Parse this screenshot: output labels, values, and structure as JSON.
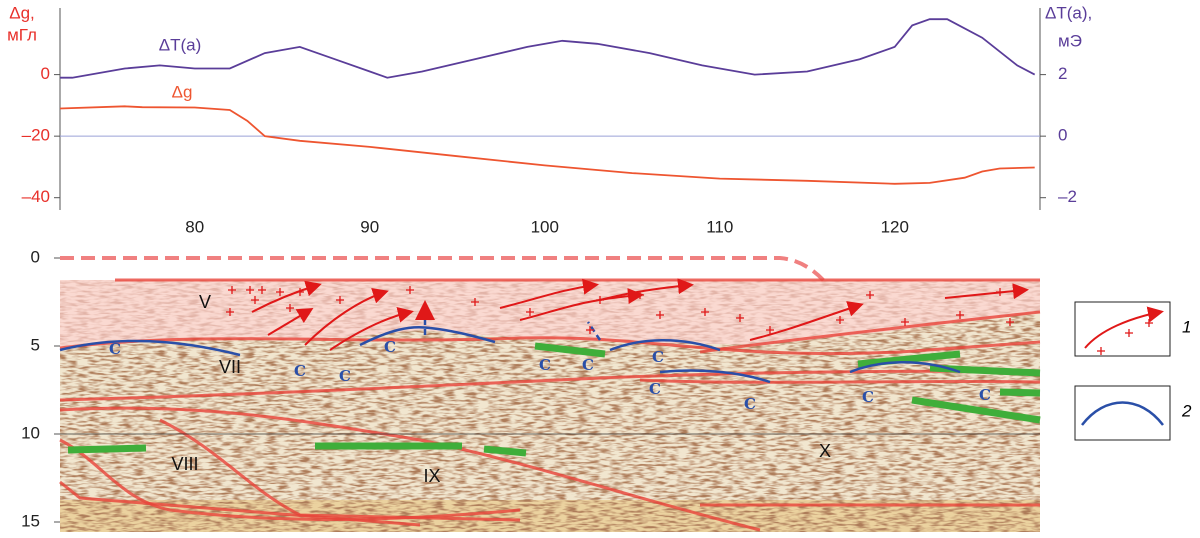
{
  "chart_data": [
    {
      "type": "line",
      "ylabel": [
        "Δg,",
        "мГл"
      ],
      "y2label": [
        "ΔT(a),",
        "мЭ"
      ],
      "xlim": [
        72.3,
        128.3
      ],
      "xticks": [
        80,
        90,
        100,
        110,
        120
      ],
      "ylim": [
        -44,
        21
      ],
      "yticks": [
        {
          "value": -40,
          "label": "–40"
        },
        {
          "value": -20,
          "label": "–20"
        },
        0
      ],
      "y2lim": [
        -2.4,
        4.1
      ],
      "y2ticks": [
        {
          "value": -2,
          "label": "–2"
        },
        0,
        2
      ],
      "series": [
        {
          "name": "ΔT(a)",
          "color": "#5a3d99",
          "axis": "y2",
          "x": [
            72.3,
            73,
            76,
            78,
            80,
            82,
            84,
            86,
            88,
            90,
            91,
            93,
            96,
            99,
            101,
            103,
            106,
            109,
            112,
            115,
            118,
            120,
            121,
            122,
            123,
            125,
            127,
            128
          ],
          "values": [
            1.9,
            1.9,
            2.2,
            2.3,
            2.2,
            2.2,
            2.7,
            2.9,
            2.5,
            2.1,
            1.9,
            2.1,
            2.5,
            2.9,
            3.1,
            3.0,
            2.7,
            2.3,
            2.0,
            2.1,
            2.5,
            2.9,
            3.6,
            3.8,
            3.8,
            3.2,
            2.3,
            2.0
          ]
        },
        {
          "name": "Δg",
          "color": "#ee5530",
          "x": [
            72.3,
            76,
            77,
            80,
            82,
            83,
            84,
            86,
            90,
            95,
            100,
            105,
            110,
            115,
            120,
            122,
            124,
            125,
            126,
            128
          ],
          "values": [
            -11,
            -10.3,
            -10.6,
            -10.7,
            -11.5,
            -15,
            -20,
            -21.5,
            -23.5,
            -26.5,
            -29.5,
            -32,
            -33.8,
            -34.5,
            -35.5,
            -35.2,
            -33.5,
            -31.5,
            -30.5,
            -30.2
          ]
        }
      ]
    },
    {
      "type": "section",
      "ylim": [
        0,
        15
      ],
      "yticks": [
        0,
        5,
        10,
        15
      ],
      "labels": [
        "V",
        "VII",
        "VIII",
        "IX",
        "X"
      ],
      "c_label": "C",
      "legend": [
        "1",
        "2"
      ]
    }
  ]
}
